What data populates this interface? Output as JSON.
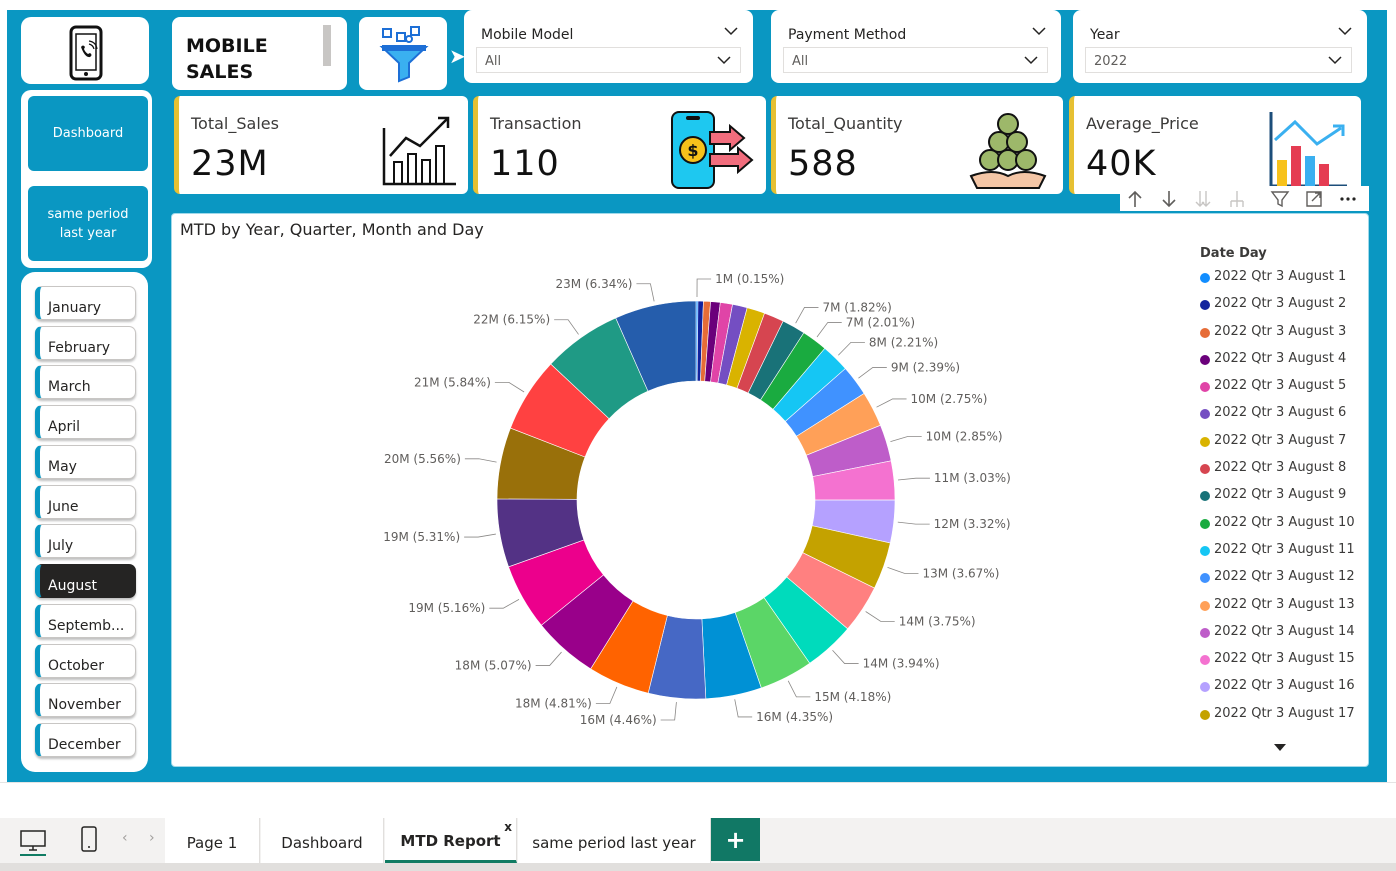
{
  "header": {
    "title": "MOBILE SALES"
  },
  "slicers": [
    {
      "title": "Mobile Model",
      "value": "All"
    },
    {
      "title": "Payment Method",
      "value": "All"
    },
    {
      "title": "Year",
      "value": "2022"
    }
  ],
  "kpis": [
    {
      "label": "Total_Sales",
      "value": "23M",
      "icon": "line-chart-icon"
    },
    {
      "label": "Transaction",
      "value": "110",
      "icon": "mobile-payment-icon"
    },
    {
      "label": "Total_Quantity",
      "value": "588",
      "icon": "coins-hand-icon"
    },
    {
      "label": "Average_Price",
      "value": "40K",
      "icon": "bar-trend-icon"
    }
  ],
  "nav": {
    "dashboard": "Dashboard",
    "same_period": "same period last year"
  },
  "months": [
    "January",
    "February",
    "March",
    "April",
    "May",
    "June",
    "July",
    "August",
    "Septemb...",
    "October",
    "November",
    "December"
  ],
  "selected_month": "August",
  "chart_data": {
    "type": "donut",
    "title": "MTD by Year, Quarter, Month and Day",
    "legend_title": "Date Day",
    "legend_placement": "right",
    "slices": [
      {
        "name": "2022 Qtr 3 August 1",
        "label": "1M (0.15%)",
        "pct": 0.15,
        "color": "#118dff"
      },
      {
        "name": "2022 Qtr 3 August 2",
        "label": "",
        "pct": 0.42,
        "color": "#12239e"
      },
      {
        "name": "2022 Qtr 3 August 3",
        "label": "",
        "pct": 0.55,
        "color": "#e66c37"
      },
      {
        "name": "2022 Qtr 3 August 4",
        "label": "",
        "pct": 0.75,
        "color": "#6b007b"
      },
      {
        "name": "2022 Qtr 3 August 5",
        "label": "",
        "pct": 0.95,
        "color": "#e044a7"
      },
      {
        "name": "2022 Qtr 3 August 6",
        "label": "",
        "pct": 1.15,
        "color": "#744ec2"
      },
      {
        "name": "2022 Qtr 3 August 7",
        "label": "",
        "pct": 1.4,
        "color": "#d9b300"
      },
      {
        "name": "2022 Qtr 3 August 8",
        "label": "",
        "pct": 1.55,
        "color": "#d64550"
      },
      {
        "name": "2022 Qtr 3 August 9",
        "label": "7M (1.82%)",
        "pct": 1.82,
        "color": "#197278"
      },
      {
        "name": "2022 Qtr 3 August 10",
        "label": "7M (2.01%)",
        "pct": 2.01,
        "color": "#1aab40"
      },
      {
        "name": "2022 Qtr 3 August 11",
        "label": "8M (2.21%)",
        "pct": 2.21,
        "color": "#15c6f4"
      },
      {
        "name": "2022 Qtr 3 August 12",
        "label": "9M (2.39%)",
        "pct": 2.39,
        "color": "#4092ff"
      },
      {
        "name": "2022 Qtr 3 August 13",
        "label": "10M (2.75%)",
        "pct": 2.75,
        "color": "#ffa058"
      },
      {
        "name": "2022 Qtr 3 August 14",
        "label": "10M (2.85%)",
        "pct": 2.85,
        "color": "#be5dc9"
      },
      {
        "name": "2022 Qtr 3 August 15",
        "label": "11M (3.03%)",
        "pct": 3.03,
        "color": "#f472d0"
      },
      {
        "name": "2022 Qtr 3 August 16",
        "label": "12M (3.32%)",
        "pct": 3.32,
        "color": "#b5a1ff"
      },
      {
        "name": "2022 Qtr 3 August 17",
        "label": "13M (3.67%)",
        "pct": 3.67,
        "color": "#c4a200"
      },
      {
        "name": "",
        "label": "14M (3.75%)",
        "pct": 3.75,
        "color": "#ff8080"
      },
      {
        "name": "",
        "label": "14M (3.94%)",
        "pct": 3.94,
        "color": "#00dbbc"
      },
      {
        "name": "",
        "label": "15M (4.18%)",
        "pct": 4.18,
        "color": "#5bd667"
      },
      {
        "name": "",
        "label": "16M (4.35%)",
        "pct": 4.35,
        "color": "#0091d5"
      },
      {
        "name": "",
        "label": "16M (4.46%)",
        "pct": 4.46,
        "color": "#4668c5"
      },
      {
        "name": "",
        "label": "18M (4.81%)",
        "pct": 4.81,
        "color": "#ff6300"
      },
      {
        "name": "",
        "label": "18M (5.07%)",
        "pct": 5.07,
        "color": "#99008a"
      },
      {
        "name": "",
        "label": "19M (5.16%)",
        "pct": 5.16,
        "color": "#ec008c"
      },
      {
        "name": "",
        "label": "19M (5.31%)",
        "pct": 5.31,
        "color": "#533285"
      },
      {
        "name": "",
        "label": "20M (5.56%)",
        "pct": 5.56,
        "color": "#99700a"
      },
      {
        "name": "",
        "label": "21M (5.84%)",
        "pct": 5.84,
        "color": "#ff4141"
      },
      {
        "name": "",
        "label": "22M (6.15%)",
        "pct": 6.15,
        "color": "#1f9a85"
      },
      {
        "name": "",
        "label": "23M (6.34%)",
        "pct": 6.34,
        "color": "#255dac"
      }
    ]
  },
  "tabs": [
    {
      "label": "Page 1"
    },
    {
      "label": "Dashboard"
    },
    {
      "label": "MTD Report",
      "active": true,
      "close": "x"
    },
    {
      "label": "same period last year"
    }
  ],
  "add_tab": "+",
  "colors": {
    "accent": "#0a97c2",
    "kpi_bar": "#e6c032",
    "add_tab": "#117865"
  }
}
